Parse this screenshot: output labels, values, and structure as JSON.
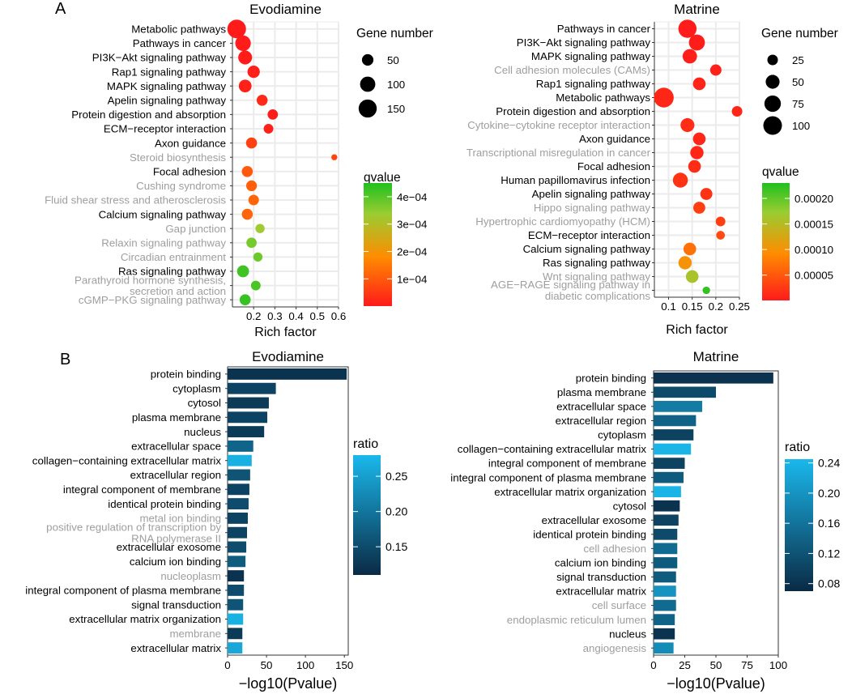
{
  "panels": {
    "A": {
      "label": "A"
    },
    "B": {
      "label": "B"
    }
  },
  "colors": {
    "grid": "#ebebeb",
    "axis": "#333333",
    "label_normal": "#000000",
    "label_grey": "#9e9e9e",
    "qvalue_low": "#ff1a1a",
    "qvalue_mid": "#ff8c00",
    "qvalue_midhigh": "#9acd32",
    "qvalue_high": "#1fc01f",
    "ratio_low": "#0a2a44",
    "ratio_high": "#1ab8ec"
  },
  "chart_data": [
    {
      "id": "A-evodiamine",
      "type": "scatter",
      "title": "Evodiamine",
      "xlabel": "Rich factor",
      "xlim": [
        0.1,
        0.6
      ],
      "xticks": [
        0.2,
        0.3,
        0.4,
        0.5,
        0.6
      ],
      "xtick_labels": [
        "0.2",
        "0.3",
        "0.4",
        "0.5",
        "0.6"
      ],
      "size_legend_title": "Gene number",
      "size_legend": [
        50,
        100,
        150
      ],
      "size_max": 160,
      "color_legend_title": "qvalue",
      "color_range": [
        5e-07,
        0.00045
      ],
      "color_ticks": [
        0.0001,
        0.0002,
        0.0003,
        0.0004
      ],
      "color_tick_labels": [
        "1e−04",
        "2e−04",
        "3e−04",
        "4e−04"
      ],
      "categories": [
        {
          "label": "Metabolic pathways",
          "grey": false,
          "x": 0.12,
          "size": 160,
          "q": 2e-06
        },
        {
          "label": "Pathways in cancer",
          "grey": false,
          "x": 0.15,
          "size": 105,
          "q": 3e-06
        },
        {
          "label": "PI3K−Akt signaling pathway",
          "grey": false,
          "x": 0.16,
          "size": 80,
          "q": 4e-06
        },
        {
          "label": "Rap1 signaling pathway",
          "grey": false,
          "x": 0.2,
          "size": 60,
          "q": 1e-05
        },
        {
          "label": "MAPK signaling pathway",
          "grey": false,
          "x": 0.16,
          "size": 65,
          "q": 1.2e-05
        },
        {
          "label": "Apelin signaling pathway",
          "grey": false,
          "x": 0.24,
          "size": 45,
          "q": 2.5e-05
        },
        {
          "label": "Protein digestion and absorption",
          "grey": false,
          "x": 0.29,
          "size": 38,
          "q": 5e-06
        },
        {
          "label": "ECM−receptor interaction",
          "grey": false,
          "x": 0.27,
          "size": 32,
          "q": 1e-05
        },
        {
          "label": "Axon guidance",
          "grey": false,
          "x": 0.19,
          "size": 45,
          "q": 6e-05
        },
        {
          "label": "Steroid biosynthesis",
          "grey": true,
          "x": 0.58,
          "size": 8,
          "q": 7e-05
        },
        {
          "label": "Focal adhesion",
          "grey": false,
          "x": 0.17,
          "size": 45,
          "q": 0.0001
        },
        {
          "label": "Cushing syndrome",
          "grey": true,
          "x": 0.19,
          "size": 42,
          "q": 0.00011
        },
        {
          "label": "Fluid shear stress and atherosclerosis",
          "grey": true,
          "x": 0.2,
          "size": 40,
          "q": 0.00012
        },
        {
          "label": "Calcium signaling pathway",
          "grey": false,
          "x": 0.17,
          "size": 45,
          "q": 0.00012
        },
        {
          "label": "Gap junction",
          "grey": true,
          "x": 0.23,
          "size": 28,
          "q": 0.00033
        },
        {
          "label": "Relaxin signaling pathway",
          "grey": true,
          "x": 0.19,
          "size": 38,
          "q": 0.00037
        },
        {
          "label": "Circadian entrainment",
          "grey": true,
          "x": 0.22,
          "size": 28,
          "q": 0.00038
        },
        {
          "label": "Ras signaling pathway",
          "grey": false,
          "x": 0.15,
          "size": 55,
          "q": 0.00042
        },
        {
          "label": "Parathyroid hormone synthesis,\nsecretion and action",
          "grey": true,
          "x": 0.21,
          "size": 32,
          "q": 0.00041
        },
        {
          "label": "cGMP−PKG signaling pathway",
          "grey": true,
          "x": 0.16,
          "size": 45,
          "q": 0.00043
        }
      ]
    },
    {
      "id": "A-matrine",
      "type": "scatter",
      "title": "Matrine",
      "xlabel": "Rich factor",
      "xlim": [
        0.07,
        0.25
      ],
      "xticks": [
        0.1,
        0.15,
        0.2,
        0.25
      ],
      "xtick_labels": [
        "0.1",
        "0.15",
        "0.2",
        "0.25"
      ],
      "size_legend_title": "Gene number",
      "size_legend": [
        25,
        50,
        75,
        100
      ],
      "size_max": 100,
      "color_legend_title": "qvalue",
      "color_range": [
        5e-07,
        0.00023
      ],
      "color_ticks": [
        5e-05,
        0.0001,
        0.00015,
        0.0002
      ],
      "color_tick_labels": [
        "0.00005",
        "0.00010",
        "0.00015",
        "0.00020"
      ],
      "categories": [
        {
          "label": "Pathways in cancer",
          "grey": false,
          "x": 0.14,
          "size": 95,
          "q": 2e-06
        },
        {
          "label": "PI3K−Akt signaling pathway",
          "grey": false,
          "x": 0.16,
          "size": 70,
          "q": 3e-06
        },
        {
          "label": "MAPK signaling pathway",
          "grey": false,
          "x": 0.145,
          "size": 55,
          "q": 4e-06
        },
        {
          "label": "Cell adhesion molecules (CAMs)",
          "grey": true,
          "x": 0.2,
          "size": 30,
          "q": 5e-06
        },
        {
          "label": "Rap1 signaling pathway",
          "grey": false,
          "x": 0.165,
          "size": 40,
          "q": 8e-06
        },
        {
          "label": "Metabolic pathways",
          "grey": false,
          "x": 0.09,
          "size": 115,
          "q": 1e-05
        },
        {
          "label": "Protein digestion and absorption",
          "grey": false,
          "x": 0.245,
          "size": 25,
          "q": 1e-05
        },
        {
          "label": "Cytokine−cytokine receptor interaction",
          "grey": true,
          "x": 0.14,
          "size": 50,
          "q": 1.5e-05
        },
        {
          "label": "Axon guidance",
          "grey": false,
          "x": 0.165,
          "size": 40,
          "q": 1e-05
        },
        {
          "label": "Transcriptional misregulation in cancer",
          "grey": true,
          "x": 0.16,
          "size": 45,
          "q": 1e-05
        },
        {
          "label": "Focal adhesion",
          "grey": false,
          "x": 0.155,
          "size": 40,
          "q": 1.5e-05
        },
        {
          "label": "Human papillomavirus infection",
          "grey": false,
          "x": 0.125,
          "size": 60,
          "q": 2e-05
        },
        {
          "label": "Apelin signaling pathway",
          "grey": false,
          "x": 0.18,
          "size": 35,
          "q": 2e-05
        },
        {
          "label": "Hippo signaling pathway",
          "grey": true,
          "x": 0.165,
          "size": 35,
          "q": 3e-05
        },
        {
          "label": "Hypertrophic cardiomyopathy (HCM)",
          "grey": true,
          "x": 0.21,
          "size": 20,
          "q": 3e-05
        },
        {
          "label": "ECM−receptor interaction",
          "grey": false,
          "x": 0.21,
          "size": 15,
          "q": 4e-05
        },
        {
          "label": "Calcium signaling pathway",
          "grey": false,
          "x": 0.145,
          "size": 40,
          "q": 7e-05
        },
        {
          "label": "Ras signaling pathway",
          "grey": false,
          "x": 0.135,
          "size": 45,
          "q": 0.0001
        },
        {
          "label": "Wnt signaling pathway",
          "grey": true,
          "x": 0.15,
          "size": 40,
          "q": 0.00016
        },
        {
          "label": "AGE−RAGE signaling pathway in\ndiabetic complications",
          "grey": true,
          "x": 0.18,
          "size": 10,
          "q": 0.00022
        }
      ]
    },
    {
      "id": "B-evodiamine",
      "type": "bar",
      "orientation": "horizontal",
      "title": "Evodiamine",
      "xlabel": "−log10(Pvalue)",
      "xlim": [
        0,
        155
      ],
      "xticks": [
        0,
        50,
        100,
        150
      ],
      "xtick_labels": [
        "0",
        "50",
        "100",
        "150"
      ],
      "color_legend_title": "ratio",
      "color_range": [
        0.11,
        0.28
      ],
      "color_ticks": [
        0.15,
        0.2,
        0.25
      ],
      "color_tick_labels": [
        "0.15",
        "0.20",
        "0.25"
      ],
      "categories": [
        {
          "label": "protein binding",
          "grey": false,
          "value": 153,
          "ratio": 0.12
        },
        {
          "label": "cytoplasm",
          "grey": false,
          "value": 62,
          "ratio": 0.14
        },
        {
          "label": "cytosol",
          "grey": false,
          "value": 53,
          "ratio": 0.13
        },
        {
          "label": "plasma membrane",
          "grey": false,
          "value": 51,
          "ratio": 0.14
        },
        {
          "label": "nucleus",
          "grey": false,
          "value": 47,
          "ratio": 0.13
        },
        {
          "label": "extracellular space",
          "grey": false,
          "value": 33,
          "ratio": 0.18
        },
        {
          "label": "collagen−containing extracellular matrix",
          "grey": false,
          "value": 31,
          "ratio": 0.27
        },
        {
          "label": "extracellular region",
          "grey": false,
          "value": 29,
          "ratio": 0.16
        },
        {
          "label": "integral component of membrane",
          "grey": false,
          "value": 28,
          "ratio": 0.14
        },
        {
          "label": "identical protein binding",
          "grey": false,
          "value": 27,
          "ratio": 0.15
        },
        {
          "label": "metal ion binding",
          "grey": true,
          "value": 26,
          "ratio": 0.14
        },
        {
          "label": "positive regulation of transcription by\nRNA polymerase II",
          "grey": true,
          "value": 25,
          "ratio": 0.14
        },
        {
          "label": "extracellular exosome",
          "grey": false,
          "value": 24,
          "ratio": 0.15
        },
        {
          "label": "calcium ion binding",
          "grey": false,
          "value": 23,
          "ratio": 0.17
        },
        {
          "label": "nucleoplasm",
          "grey": true,
          "value": 21,
          "ratio": 0.12
        },
        {
          "label": "integral component of plasma membrane",
          "grey": false,
          "value": 21,
          "ratio": 0.15
        },
        {
          "label": "signal transduction",
          "grey": false,
          "value": 20,
          "ratio": 0.16
        },
        {
          "label": "extracellular matrix organization",
          "grey": false,
          "value": 20,
          "ratio": 0.27
        },
        {
          "label": "membrane",
          "grey": true,
          "value": 19,
          "ratio": 0.13
        },
        {
          "label": "extracellular matrix",
          "grey": false,
          "value": 19,
          "ratio": 0.26
        }
      ]
    },
    {
      "id": "B-matrine",
      "type": "bar",
      "orientation": "horizontal",
      "title": "Matrine",
      "xlabel": "−log10(Pvalue)",
      "xlim": [
        0,
        100
      ],
      "xticks": [
        0,
        25,
        50,
        75,
        100
      ],
      "xtick_labels": [
        "0",
        "25",
        "50",
        "75",
        "100"
      ],
      "color_legend_title": "ratio",
      "color_range": [
        0.07,
        0.245
      ],
      "color_ticks": [
        0.08,
        0.12,
        0.16,
        0.2,
        0.24
      ],
      "color_tick_labels": [
        "0.08",
        "0.12",
        "0.16",
        "0.20",
        "0.24"
      ],
      "categories": [
        {
          "label": "protein binding",
          "grey": false,
          "value": 96,
          "ratio": 0.08
        },
        {
          "label": "plasma membrane",
          "grey": false,
          "value": 50,
          "ratio": 0.11
        },
        {
          "label": "extracellular space",
          "grey": false,
          "value": 39,
          "ratio": 0.17
        },
        {
          "label": "extracellular region",
          "grey": false,
          "value": 34,
          "ratio": 0.14
        },
        {
          "label": "cytoplasm",
          "grey": false,
          "value": 32,
          "ratio": 0.1
        },
        {
          "label": "collagen−containing extracellular matrix",
          "grey": false,
          "value": 30,
          "ratio": 0.24
        },
        {
          "label": "integral component of membrane",
          "grey": false,
          "value": 25,
          "ratio": 0.1
        },
        {
          "label": "integral component of plasma membrane",
          "grey": false,
          "value": 24,
          "ratio": 0.13
        },
        {
          "label": "extracellular matrix organization",
          "grey": false,
          "value": 22,
          "ratio": 0.24
        },
        {
          "label": "cytosol",
          "grey": false,
          "value": 21,
          "ratio": 0.08
        },
        {
          "label": "extracellular exosome",
          "grey": false,
          "value": 20,
          "ratio": 0.1
        },
        {
          "label": "identical protein binding",
          "grey": false,
          "value": 19,
          "ratio": 0.11
        },
        {
          "label": "cell adhesion",
          "grey": true,
          "value": 19,
          "ratio": 0.15
        },
        {
          "label": "calcium ion binding",
          "grey": false,
          "value": 19,
          "ratio": 0.13
        },
        {
          "label": "signal transduction",
          "grey": false,
          "value": 18,
          "ratio": 0.13
        },
        {
          "label": "extracellular matrix",
          "grey": false,
          "value": 18,
          "ratio": 0.2
        },
        {
          "label": "cell surface",
          "grey": true,
          "value": 18,
          "ratio": 0.15
        },
        {
          "label": "endoplasmic reticulum lumen",
          "grey": true,
          "value": 17,
          "ratio": 0.14
        },
        {
          "label": "nucleus",
          "grey": false,
          "value": 17,
          "ratio": 0.08
        },
        {
          "label": "angiogenesis",
          "grey": true,
          "value": 16,
          "ratio": 0.19
        }
      ]
    }
  ]
}
